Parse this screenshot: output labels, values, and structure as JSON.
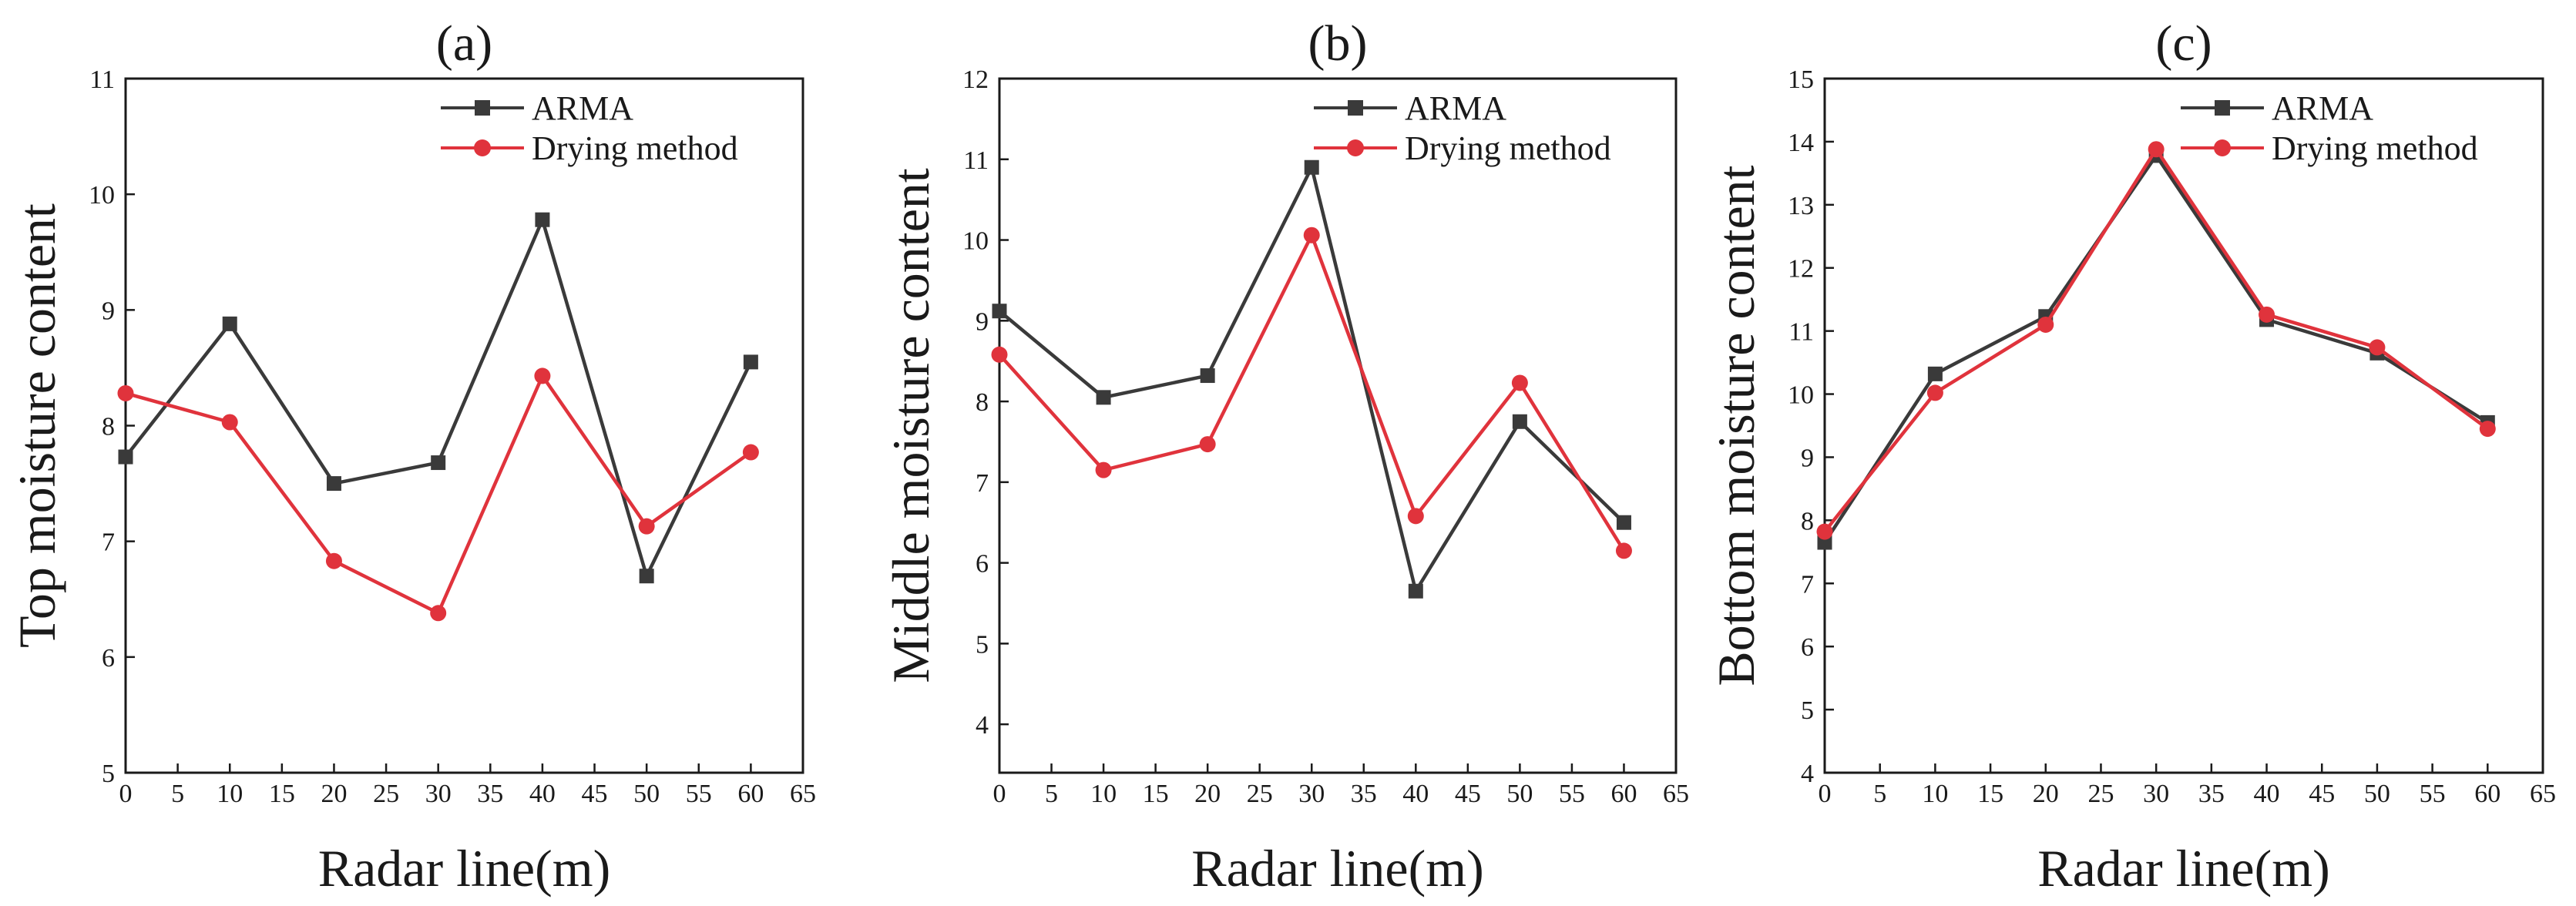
{
  "chart_data": [
    {
      "type": "line",
      "title": "(a)",
      "xlabel": "Radar line(m)",
      "ylabel": "Top moisture content",
      "xlim": [
        0,
        65
      ],
      "ylim": [
        5,
        11
      ],
      "x_ticks": [
        0,
        5,
        10,
        15,
        20,
        25,
        30,
        35,
        40,
        45,
        50,
        55,
        60,
        65
      ],
      "y_ticks": [
        5,
        6,
        7,
        8,
        9,
        10,
        11
      ],
      "legend_position": "top-right",
      "series": [
        {
          "name": "ARMA",
          "marker": "square",
          "color": "#3a3a3a",
          "x": [
            0,
            10,
            20,
            30,
            40,
            50,
            60
          ],
          "values": [
            7.73,
            8.88,
            7.5,
            7.68,
            9.78,
            6.7,
            8.55
          ]
        },
        {
          "name": "Drying method",
          "marker": "circle",
          "color": "#e0333c",
          "x": [
            0,
            10,
            20,
            30,
            40,
            50,
            60
          ],
          "values": [
            8.28,
            8.03,
            6.83,
            6.38,
            8.43,
            7.13,
            7.77
          ]
        }
      ]
    },
    {
      "type": "line",
      "title": "(b)",
      "xlabel": "Radar line(m)",
      "ylabel": "Middle moisture content",
      "xlim": [
        0,
        65
      ],
      "ylim": [
        3.4,
        12
      ],
      "x_ticks": [
        0,
        5,
        10,
        15,
        20,
        25,
        30,
        35,
        40,
        45,
        50,
        55,
        60,
        65
      ],
      "y_ticks": [
        4,
        5,
        6,
        7,
        8,
        9,
        10,
        11,
        12
      ],
      "legend_position": "top-right",
      "series": [
        {
          "name": "ARMA",
          "marker": "square",
          "color": "#3a3a3a",
          "x": [
            0,
            10,
            20,
            30,
            40,
            50,
            60
          ],
          "values": [
            9.12,
            8.05,
            8.32,
            10.9,
            5.65,
            7.75,
            6.5
          ]
        },
        {
          "name": "Drying method",
          "marker": "circle",
          "color": "#e0333c",
          "x": [
            0,
            10,
            20,
            30,
            40,
            50,
            60
          ],
          "values": [
            8.58,
            7.15,
            7.47,
            10.06,
            6.58,
            8.23,
            6.15
          ]
        }
      ]
    },
    {
      "type": "line",
      "title": "(c)",
      "xlabel": "Radar line(m)",
      "ylabel": "Bottom moisture content",
      "xlim": [
        0,
        65
      ],
      "ylim": [
        4,
        15
      ],
      "x_ticks": [
        0,
        5,
        10,
        15,
        20,
        25,
        30,
        35,
        40,
        45,
        50,
        55,
        60,
        65
      ],
      "y_ticks": [
        4,
        5,
        6,
        7,
        8,
        9,
        10,
        11,
        12,
        13,
        14,
        15
      ],
      "legend_position": "top-right",
      "series": [
        {
          "name": "ARMA",
          "marker": "square",
          "color": "#3a3a3a",
          "x": [
            0,
            10,
            20,
            30,
            40,
            50,
            60
          ],
          "values": [
            7.65,
            10.32,
            11.23,
            13.78,
            11.18,
            10.65,
            9.55
          ]
        },
        {
          "name": "Drying method",
          "marker": "circle",
          "color": "#e0333c",
          "x": [
            0,
            10,
            20,
            30,
            40,
            50,
            60
          ],
          "values": [
            7.82,
            10.02,
            11.1,
            13.88,
            11.26,
            10.74,
            9.45
          ]
        }
      ]
    }
  ]
}
